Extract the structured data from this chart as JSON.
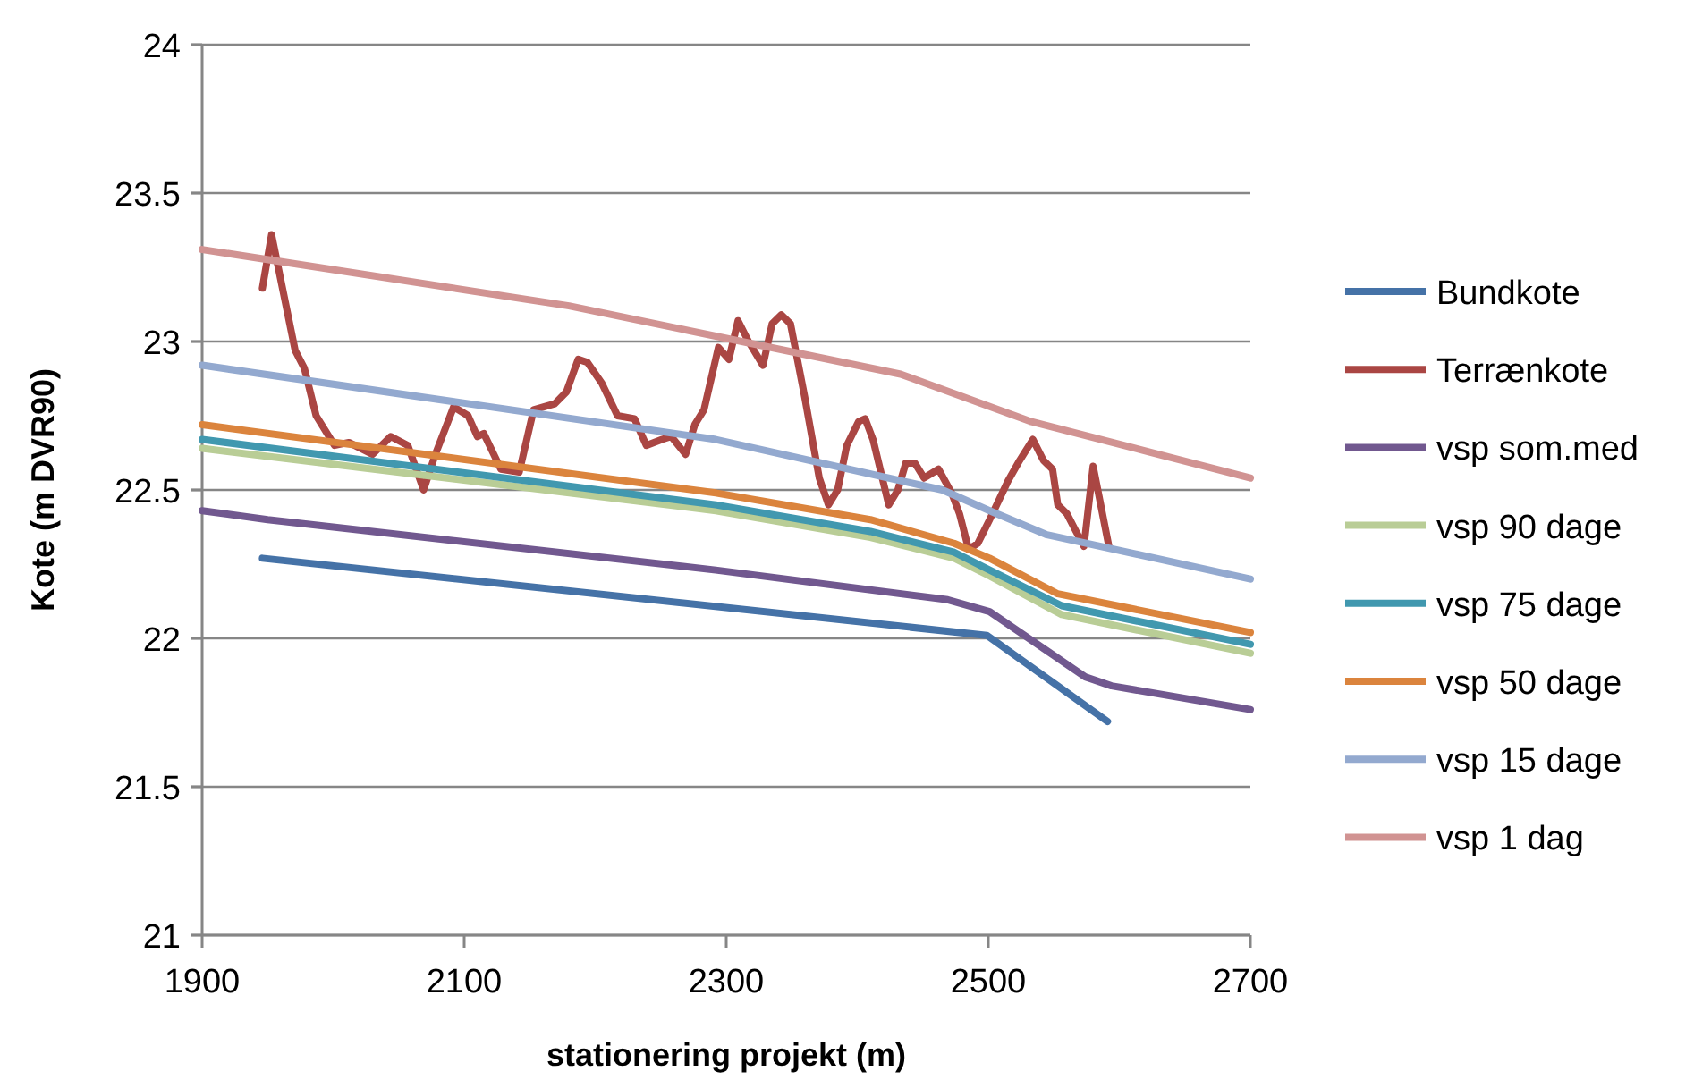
{
  "chart_data": {
    "type": "line",
    "xlabel": "stationering projekt (m)",
    "ylabel": "Kote (m DVR90)",
    "xlim": [
      1900,
      2700
    ],
    "ylim": [
      21,
      24
    ],
    "xticks": [
      1900,
      2100,
      2300,
      2500,
      2700
    ],
    "yticks": [
      21,
      21.5,
      22,
      22.5,
      23,
      23.5,
      24
    ],
    "grid": "y",
    "legend": "right",
    "marker": "none",
    "line_style": "solid",
    "series": [
      {
        "name": "Bundkote",
        "color": "#4572a7",
        "x": [
          1946,
          2499,
          2591
        ],
        "values": [
          22.27,
          22.01,
          21.72
        ]
      },
      {
        "name": "Terrænkote",
        "color": "#aa4643",
        "x": [
          1946,
          1953,
          1971,
          1978,
          1987,
          2001,
          2012,
          2030,
          2044,
          2057,
          2069,
          2078,
          2092,
          2103,
          2110,
          2115,
          2128,
          2142,
          2153,
          2169,
          2178,
          2187,
          2194,
          2205,
          2217,
          2230,
          2239,
          2251,
          2258,
          2269,
          2276,
          2283,
          2294,
          2302,
          2309,
          2317,
          2328,
          2335,
          2342,
          2349,
          2360,
          2371,
          2378,
          2385,
          2392,
          2401,
          2406,
          2412,
          2424,
          2431,
          2437,
          2444,
          2451,
          2462,
          2472,
          2478,
          2485,
          2492,
          2501,
          2515,
          2524,
          2534,
          2542,
          2549,
          2553,
          2560,
          2567,
          2573,
          2580,
          2592
        ],
        "values": [
          23.18,
          23.36,
          22.97,
          22.91,
          22.75,
          22.65,
          22.66,
          22.62,
          22.68,
          22.65,
          22.5,
          22.62,
          22.78,
          22.75,
          22.68,
          22.69,
          22.57,
          22.56,
          22.77,
          22.79,
          22.83,
          22.94,
          22.93,
          22.86,
          22.75,
          22.74,
          22.65,
          22.67,
          22.68,
          22.62,
          22.72,
          22.77,
          22.98,
          22.94,
          23.07,
          23,
          22.92,
          23.06,
          23.09,
          23.06,
          22.81,
          22.54,
          22.45,
          22.5,
          22.65,
          22.73,
          22.74,
          22.67,
          22.45,
          22.5,
          22.59,
          22.59,
          22.54,
          22.57,
          22.49,
          22.42,
          22.3,
          22.32,
          22.4,
          22.53,
          22.6,
          22.67,
          22.6,
          22.57,
          22.45,
          22.42,
          22.36,
          22.31,
          22.58,
          22.31
        ]
      },
      {
        "name": "vsp som.med",
        "color": "#71588f",
        "x": [
          1900,
          1950,
          2292,
          2469,
          2501,
          2574,
          2594,
          2700
        ],
        "values": [
          22.43,
          22.4,
          22.23,
          22.13,
          22.09,
          21.87,
          21.84,
          21.76
        ]
      },
      {
        "name": "vsp 90 dage",
        "color": "#b9cd96",
        "x": [
          1900,
          2292,
          2410,
          2474,
          2501,
          2556,
          2700
        ],
        "values": [
          22.64,
          22.43,
          22.34,
          22.27,
          22.21,
          22.08,
          21.95
        ]
      },
      {
        "name": "vsp 75 dage",
        "color": "#4198af",
        "x": [
          1900,
          2292,
          2410,
          2474,
          2501,
          2556,
          2700
        ],
        "values": [
          22.67,
          22.45,
          22.36,
          22.29,
          22.23,
          22.11,
          21.98
        ]
      },
      {
        "name": "vsp 50 dage",
        "color": "#db843d",
        "x": [
          1900,
          2292,
          2410,
          2474,
          2501,
          2553,
          2700
        ],
        "values": [
          22.72,
          22.49,
          22.4,
          22.32,
          22.27,
          22.15,
          22.02
        ]
      },
      {
        "name": "vsp 15 dage",
        "color": "#93a9cf",
        "x": [
          1900,
          2292,
          2465,
          2501,
          2544,
          2700
        ],
        "values": [
          22.92,
          22.67,
          22.5,
          22.43,
          22.35,
          22.2
        ]
      },
      {
        "name": "vsp 1 dag",
        "color": "#d19392",
        "x": [
          1900,
          2180,
          2433,
          2533,
          2700
        ],
        "values": [
          23.31,
          23.12,
          22.89,
          22.73,
          22.54
        ]
      }
    ]
  }
}
